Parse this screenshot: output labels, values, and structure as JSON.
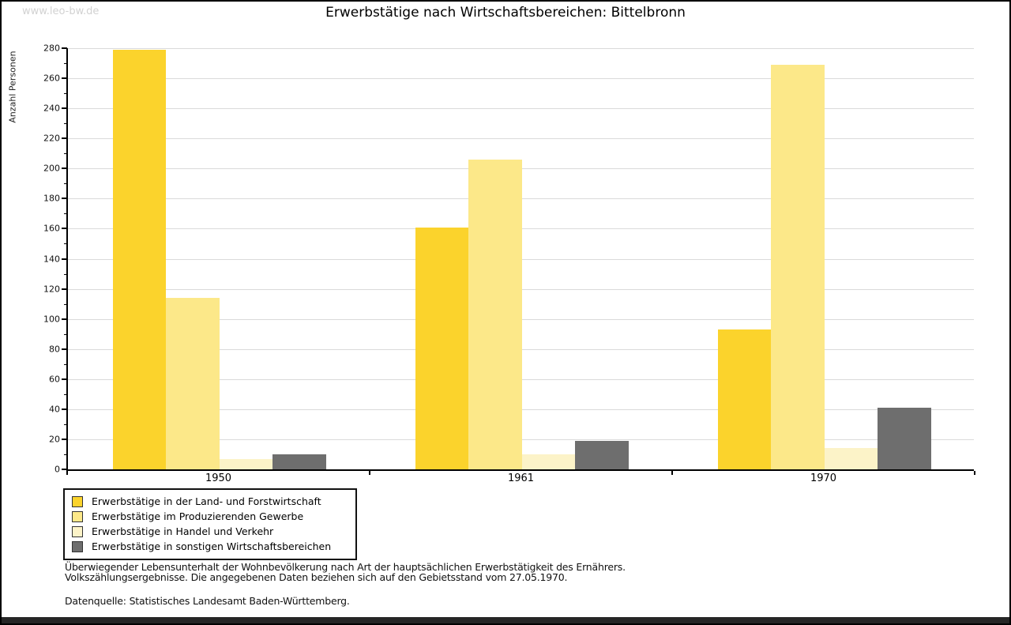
{
  "watermark": "www.leo-bw.de",
  "title": "Erwerbstätige nach Wirtschaftsbereichen: Bittelbronn",
  "chart_data": {
    "type": "bar",
    "title": "Erwerbstätige nach Wirtschaftsbereichen: Bittelbronn",
    "xlabel": "",
    "ylabel": "Anzahl Personen",
    "categories": [
      "1950",
      "1961",
      "1970"
    ],
    "series": [
      {
        "name": "Erwerbstätige in der Land- und Forstwirtschaft",
        "color": "#fbd32c",
        "values": [
          279,
          161,
          93
        ]
      },
      {
        "name": "Erwerbstätige im Produzierenden Gewerbe",
        "color": "#fce889",
        "values": [
          114,
          206,
          269
        ]
      },
      {
        "name": "Erwerbstätige in Handel und Verkehr",
        "color": "#fcf3c8",
        "values": [
          7,
          10,
          14
        ]
      },
      {
        "name": "Erwerbstätige in sonstigen Wirtschaftsbereichen",
        "color": "#6e6e6e",
        "values": [
          10,
          19,
          41
        ]
      }
    ],
    "ylim": [
      0,
      280
    ],
    "yticks": [
      0,
      20,
      40,
      60,
      80,
      100,
      120,
      140,
      160,
      180,
      200,
      220,
      240,
      260,
      280
    ],
    "ytick_minor_step": 10,
    "grid": true,
    "legend_position": "bottom-left"
  },
  "footer": {
    "line1": "Überwiegender Lebensunterhalt der Wohnbevölkerung nach Art der hauptsächlichen Erwerbstätigkeit des Ernährers.",
    "line2": "Volkszählungsergebnisse. Die angegebenen Daten beziehen sich auf den Gebietsstand vom 27.05.1970.",
    "line3": "Datenquelle: Statistisches Landesamt Baden-Württemberg."
  }
}
